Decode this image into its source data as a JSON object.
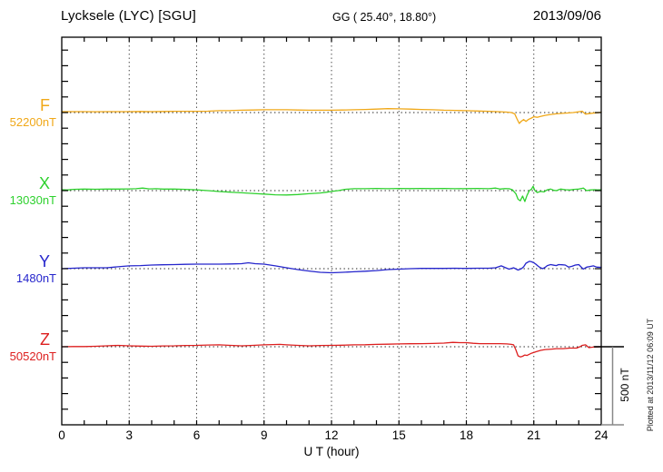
{
  "header": {
    "station": "Lycksele (LYC)  [SGU]",
    "coordinates": "GG ( 25.40°,  18.80°)",
    "date": "2013/09/06"
  },
  "channels": [
    {
      "id": "F",
      "label": "F",
      "value_label": "52200nT",
      "color": "#F0A818"
    },
    {
      "id": "X",
      "label": "X",
      "value_label": "13030nT",
      "color": "#2ED12E"
    },
    {
      "id": "Y",
      "label": "Y",
      "value_label": "1480nT",
      "color": "#2525CC"
    },
    {
      "id": "Z",
      "label": "Z",
      "value_label": "50520nT",
      "color": "#DD1F1F"
    }
  ],
  "x_axis": {
    "label": "U T (hour)",
    "tick_labels": [
      0,
      3,
      6,
      9,
      12,
      15,
      18,
      21,
      24
    ],
    "minor_tick_step_hours": 1,
    "range": [
      0,
      24
    ]
  },
  "scale_bar": {
    "label": "500 nT",
    "span_nt": 500
  },
  "footer_note": "Plotted at 2013/11/12 06:09 UT",
  "chart_data": {
    "type": "line",
    "title": "Lycksele (LYC) [SGU] magnetogram 2013/09/06",
    "xlabel": "U T (hour)",
    "x_range": [
      0,
      24
    ],
    "grid": "dotted vertical lines every 3 hours; dotted horizontal baseline per channel",
    "y_scale_nt_per_division": 100,
    "points_format": "[hour_UT, offset_nT_from_baseline]",
    "series": [
      {
        "name": "F",
        "baseline_nt": 52200,
        "color": "#F0A818",
        "points": [
          [
            0,
            6
          ],
          [
            0.5,
            6
          ],
          [
            1,
            6
          ],
          [
            1.5,
            5
          ],
          [
            2,
            6
          ],
          [
            2.5,
            6
          ],
          [
            3,
            6
          ],
          [
            3.5,
            7
          ],
          [
            4,
            6
          ],
          [
            4.5,
            7
          ],
          [
            5,
            8
          ],
          [
            5.5,
            8
          ],
          [
            6,
            8
          ],
          [
            6.5,
            9
          ],
          [
            7,
            12
          ],
          [
            7.5,
            13
          ],
          [
            8,
            15
          ],
          [
            8.5,
            16
          ],
          [
            9,
            18
          ],
          [
            9.5,
            18
          ],
          [
            10,
            18
          ],
          [
            10.5,
            16
          ],
          [
            11,
            15
          ],
          [
            11.5,
            15
          ],
          [
            12,
            15
          ],
          [
            12.5,
            16
          ],
          [
            13,
            18
          ],
          [
            13.5,
            20
          ],
          [
            14,
            22
          ],
          [
            14.5,
            25
          ],
          [
            15,
            24
          ],
          [
            15.5,
            22
          ],
          [
            16,
            20
          ],
          [
            16.5,
            18
          ],
          [
            17,
            15
          ],
          [
            17.5,
            14
          ],
          [
            18,
            12
          ],
          [
            18.5,
            10
          ],
          [
            19,
            8
          ],
          [
            19.5,
            5
          ],
          [
            19.8,
            3
          ],
          [
            20,
            0
          ],
          [
            20.15,
            -8
          ],
          [
            20.25,
            -40
          ],
          [
            20.35,
            -70
          ],
          [
            20.45,
            -55
          ],
          [
            20.55,
            -45
          ],
          [
            20.65,
            -57
          ],
          [
            20.75,
            -45
          ],
          [
            20.9,
            -35
          ],
          [
            21,
            -27
          ],
          [
            21.15,
            -30
          ],
          [
            21.3,
            -25
          ],
          [
            21.5,
            -18
          ],
          [
            21.75,
            -12
          ],
          [
            22,
            -8
          ],
          [
            22.25,
            -5
          ],
          [
            22.5,
            -3
          ],
          [
            22.75,
            0
          ],
          [
            23,
            5
          ],
          [
            23.15,
            9
          ],
          [
            23.3,
            -10
          ],
          [
            23.45,
            -7
          ],
          [
            23.6,
            -4
          ],
          [
            23.8,
            -2
          ],
          [
            24,
            2
          ]
        ]
      },
      {
        "name": "X",
        "baseline_nt": 13030,
        "color": "#2ED12E",
        "points": [
          [
            0,
            6
          ],
          [
            0.25,
            4
          ],
          [
            0.5,
            8
          ],
          [
            1,
            10
          ],
          [
            1.5,
            9
          ],
          [
            2,
            10
          ],
          [
            2.5,
            10
          ],
          [
            3,
            11
          ],
          [
            3.3,
            12
          ],
          [
            3.6,
            16
          ],
          [
            3.9,
            11
          ],
          [
            4.2,
            12
          ],
          [
            4.5,
            10
          ],
          [
            5,
            10
          ],
          [
            5.5,
            8
          ],
          [
            6,
            5
          ],
          [
            6.5,
            0
          ],
          [
            7,
            -6
          ],
          [
            7.5,
            -10
          ],
          [
            8,
            -14
          ],
          [
            8.5,
            -18
          ],
          [
            9,
            -22
          ],
          [
            9.5,
            -27
          ],
          [
            10,
            -28
          ],
          [
            10.5,
            -25
          ],
          [
            11,
            -20
          ],
          [
            11.5,
            -15
          ],
          [
            11.8,
            -10
          ],
          [
            12,
            -5
          ],
          [
            12.3,
            0
          ],
          [
            12.6,
            8
          ],
          [
            13,
            12
          ],
          [
            13.5,
            12
          ],
          [
            14,
            14
          ],
          [
            14.5,
            12
          ],
          [
            15,
            14
          ],
          [
            15.5,
            13
          ],
          [
            16,
            14
          ],
          [
            16.5,
            13
          ],
          [
            17,
            14
          ],
          [
            17.5,
            12
          ],
          [
            18,
            13
          ],
          [
            18.5,
            14
          ],
          [
            19,
            12
          ],
          [
            19.3,
            16
          ],
          [
            19.5,
            10
          ],
          [
            19.7,
            13
          ],
          [
            19.9,
            12
          ],
          [
            20.05,
            5
          ],
          [
            20.2,
            -20
          ],
          [
            20.3,
            -55
          ],
          [
            20.4,
            -65
          ],
          [
            20.5,
            -35
          ],
          [
            20.6,
            -70
          ],
          [
            20.7,
            -30
          ],
          [
            20.8,
            0
          ],
          [
            20.9,
            10
          ],
          [
            20.97,
            28
          ],
          [
            21.05,
            0
          ],
          [
            21.15,
            -12
          ],
          [
            21.3,
            -5
          ],
          [
            21.45,
            -8
          ],
          [
            21.6,
            5
          ],
          [
            21.75,
            10
          ],
          [
            21.9,
            2
          ],
          [
            22,
            0
          ],
          [
            22.2,
            10
          ],
          [
            22.4,
            6
          ],
          [
            22.6,
            4
          ],
          [
            22.8,
            8
          ],
          [
            23,
            10
          ],
          [
            23.2,
            16
          ],
          [
            23.35,
            0
          ],
          [
            23.5,
            4
          ],
          [
            23.7,
            6
          ],
          [
            23.85,
            4
          ],
          [
            24,
            6
          ]
        ]
      },
      {
        "name": "Y",
        "baseline_nt": 1480,
        "color": "#2525CC",
        "points": [
          [
            0,
            0
          ],
          [
            0.5,
            3
          ],
          [
            1,
            6
          ],
          [
            1.5,
            6
          ],
          [
            2,
            6
          ],
          [
            2.5,
            12
          ],
          [
            3,
            18
          ],
          [
            3.5,
            20
          ],
          [
            4,
            23
          ],
          [
            4.5,
            25
          ],
          [
            5,
            26
          ],
          [
            5.5,
            28
          ],
          [
            6,
            29
          ],
          [
            6.5,
            29
          ],
          [
            7,
            29
          ],
          [
            7.5,
            30
          ],
          [
            8,
            32
          ],
          [
            8.3,
            38
          ],
          [
            8.6,
            32
          ],
          [
            9,
            29
          ],
          [
            9.5,
            18
          ],
          [
            10,
            6
          ],
          [
            10.5,
            -6
          ],
          [
            11,
            -15
          ],
          [
            11.5,
            -23
          ],
          [
            12,
            -26
          ],
          [
            12.5,
            -23
          ],
          [
            13,
            -20
          ],
          [
            13.5,
            -16
          ],
          [
            14,
            -12
          ],
          [
            14.5,
            -6
          ],
          [
            15,
            -3
          ],
          [
            15.5,
            0
          ],
          [
            16,
            2
          ],
          [
            16.5,
            2
          ],
          [
            17,
            2
          ],
          [
            17.5,
            3
          ],
          [
            18,
            2
          ],
          [
            18.5,
            3
          ],
          [
            19,
            3
          ],
          [
            19.3,
            6
          ],
          [
            19.55,
            18
          ],
          [
            19.75,
            6
          ],
          [
            19.9,
            -3
          ],
          [
            20.1,
            6
          ],
          [
            20.3,
            -9
          ],
          [
            20.45,
            0
          ],
          [
            20.55,
            12
          ],
          [
            20.65,
            35
          ],
          [
            20.8,
            47
          ],
          [
            20.9,
            44
          ],
          [
            21,
            38
          ],
          [
            21.1,
            28
          ],
          [
            21.2,
            15
          ],
          [
            21.3,
            6
          ],
          [
            21.4,
            0
          ],
          [
            21.5,
            8
          ],
          [
            21.6,
            20
          ],
          [
            21.75,
            26
          ],
          [
            21.9,
            22
          ],
          [
            22,
            20
          ],
          [
            22.1,
            26
          ],
          [
            22.25,
            25
          ],
          [
            22.4,
            23
          ],
          [
            22.55,
            10
          ],
          [
            22.7,
            15
          ],
          [
            22.85,
            23
          ],
          [
            23,
            26
          ],
          [
            23.1,
            12
          ],
          [
            23.2,
            -3
          ],
          [
            23.35,
            10
          ],
          [
            23.5,
            14
          ],
          [
            23.65,
            18
          ],
          [
            23.8,
            10
          ],
          [
            24,
            9
          ]
        ]
      },
      {
        "name": "Z",
        "baseline_nt": 50520,
        "color": "#DD1F1F",
        "points": [
          [
            0,
            0
          ],
          [
            0.5,
            1
          ],
          [
            1,
            1
          ],
          [
            1.5,
            3
          ],
          [
            2,
            6
          ],
          [
            2.5,
            9
          ],
          [
            3,
            6
          ],
          [
            3.5,
            4
          ],
          [
            4,
            3
          ],
          [
            4.5,
            5
          ],
          [
            5,
            6
          ],
          [
            5.5,
            8
          ],
          [
            6,
            9
          ],
          [
            6.5,
            11
          ],
          [
            7,
            12
          ],
          [
            7.5,
            9
          ],
          [
            8,
            6
          ],
          [
            8.5,
            9
          ],
          [
            9,
            12
          ],
          [
            9.4,
            14
          ],
          [
            9.7,
            15
          ],
          [
            10,
            12
          ],
          [
            10.5,
            9
          ],
          [
            11,
            6
          ],
          [
            11.5,
            8
          ],
          [
            12,
            9
          ],
          [
            12.5,
            10
          ],
          [
            13,
            12
          ],
          [
            13.5,
            13
          ],
          [
            14,
            15
          ],
          [
            14.5,
            16
          ],
          [
            15,
            18
          ],
          [
            15.5,
            19
          ],
          [
            16,
            20
          ],
          [
            16.5,
            21
          ],
          [
            17,
            23
          ],
          [
            17.4,
            28
          ],
          [
            17.7,
            26
          ],
          [
            18,
            26
          ],
          [
            18.3,
            22
          ],
          [
            18.6,
            20
          ],
          [
            19,
            20
          ],
          [
            19.5,
            20
          ],
          [
            19.8,
            18
          ],
          [
            20,
            15
          ],
          [
            20.1,
            12
          ],
          [
            20.2,
            -20
          ],
          [
            20.3,
            -58
          ],
          [
            20.4,
            -65
          ],
          [
            20.5,
            -61
          ],
          [
            20.6,
            -53
          ],
          [
            20.7,
            -56
          ],
          [
            20.8,
            -48
          ],
          [
            20.9,
            -41
          ],
          [
            21.1,
            -32
          ],
          [
            21.3,
            -23
          ],
          [
            21.5,
            -18
          ],
          [
            21.8,
            -15
          ],
          [
            22,
            -12
          ],
          [
            22.3,
            -12
          ],
          [
            22.6,
            -9
          ],
          [
            22.9,
            -9
          ],
          [
            23.05,
            0
          ],
          [
            23.15,
            9
          ],
          [
            23.3,
            12
          ],
          [
            23.45,
            -6
          ],
          [
            23.6,
            -3
          ],
          [
            23.8,
            -1
          ],
          [
            24,
            0
          ]
        ]
      }
    ]
  }
}
